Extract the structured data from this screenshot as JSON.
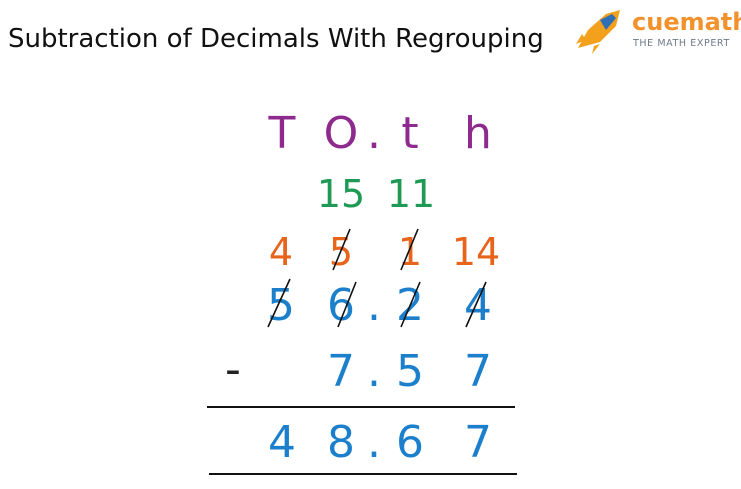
{
  "header": {
    "title": "Subtraction of Decimals With Regrouping",
    "brand": "cuemath",
    "tagline": "THE MATH EXPERT"
  },
  "place_values": [
    "T",
    "O",
    ".",
    "t",
    "h"
  ],
  "regroup_top": [
    "15",
    "11"
  ],
  "regroup": [
    "4",
    "5",
    "1",
    "14"
  ],
  "minuend": [
    "5",
    "6",
    ".",
    "2",
    "4"
  ],
  "operator": "-",
  "subtrahend": [
    "7",
    ".",
    "5",
    "7"
  ],
  "difference": [
    "4",
    "8",
    ".",
    "6",
    "7"
  ]
}
